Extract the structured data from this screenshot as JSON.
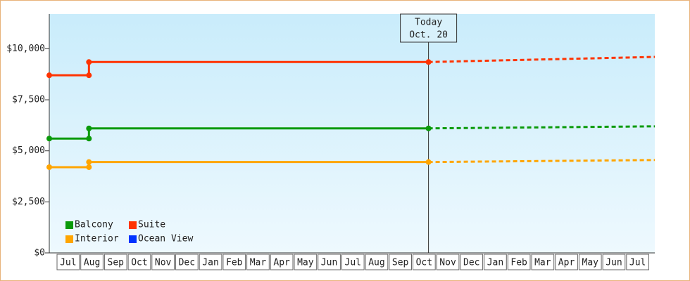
{
  "chart_data": {
    "type": "line",
    "categories": [
      "Jul",
      "Aug",
      "Sep",
      "Oct",
      "Nov",
      "Dec",
      "Jan",
      "Feb",
      "Mar",
      "Apr",
      "May",
      "Jun",
      "Jul",
      "Aug",
      "Sep",
      "Oct",
      "Nov",
      "Dec",
      "Jan",
      "Feb",
      "Mar",
      "Apr",
      "May",
      "Jun",
      "Jul"
    ],
    "x": [
      -0.3,
      1.37,
      1.37,
      15.67
    ],
    "forecast_x": [
      15.67,
      25.2
    ],
    "xlim": [
      -0.3,
      25.2
    ],
    "ylim": [
      0,
      11700
    ],
    "yticks": [
      {
        "value": 0,
        "label": "$0"
      },
      {
        "value": 2500,
        "label": "$2,500"
      },
      {
        "value": 5000,
        "label": "$5,000"
      },
      {
        "value": 7500,
        "label": "$7,500"
      },
      {
        "value": 10000,
        "label": "$10,000"
      }
    ],
    "series": [
      {
        "name": "Balcony",
        "color": "#0a9a0a",
        "values": [
          5600,
          5600,
          6100,
          6100
        ],
        "forecast_values": [
          6100,
          6200
        ]
      },
      {
        "name": "Suite",
        "color": "#ff3300",
        "values": [
          8700,
          8700,
          9350,
          9350
        ],
        "forecast_values": [
          9350,
          9600
        ]
      },
      {
        "name": "Interior",
        "color": "#ffa500",
        "values": [
          4200,
          4200,
          4450,
          4450
        ],
        "forecast_values": [
          4450,
          4550
        ]
      },
      {
        "name": "Ocean View",
        "color": "#0033ff",
        "values": [
          null,
          null,
          null,
          null
        ],
        "forecast_values": [
          null,
          null
        ]
      }
    ],
    "annotation": {
      "lines": [
        "Today",
        "Oct. 20"
      ],
      "x": 15.67
    }
  }
}
